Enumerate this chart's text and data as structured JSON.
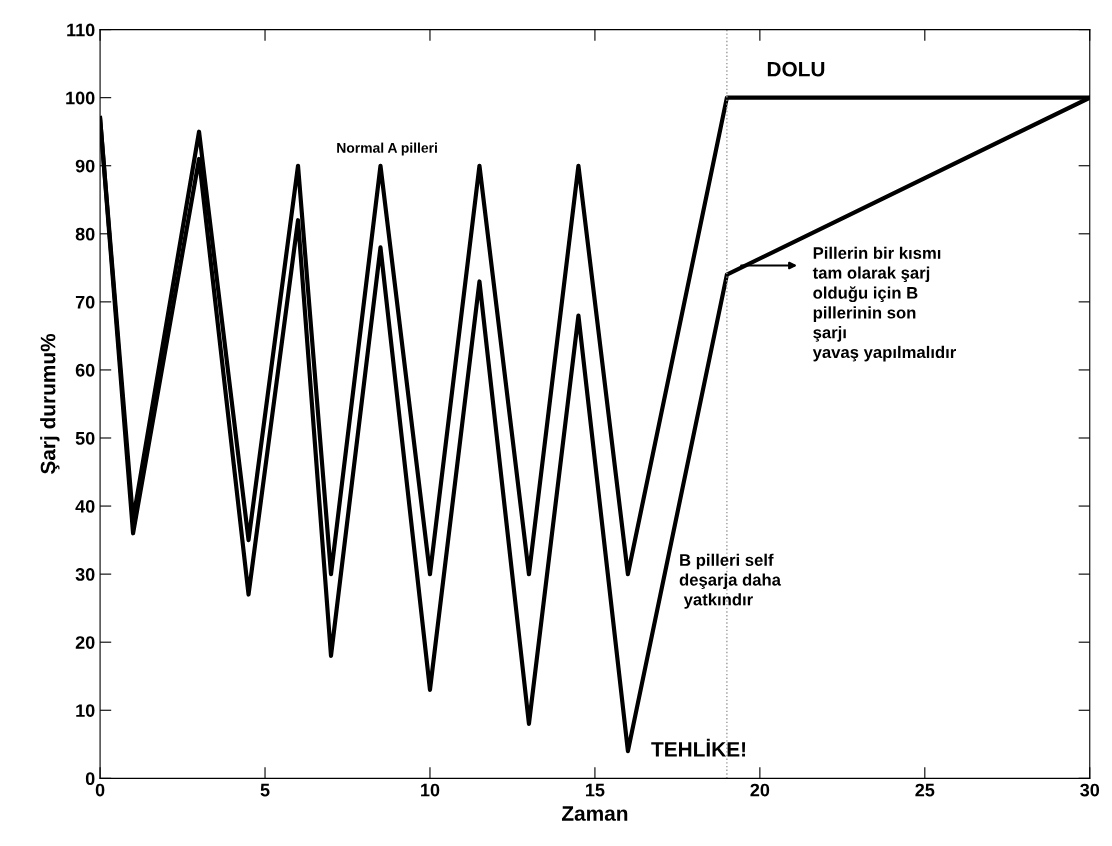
{
  "chart_data": {
    "type": "line",
    "xlabel": "Zaman",
    "ylabel": "Şarj durumu%",
    "series": [
      {
        "color": "#000000",
        "x": [
          0,
          1,
          3,
          4.5,
          6,
          7,
          8.5,
          10,
          11.5,
          13,
          14.5,
          16,
          19,
          30
        ],
        "values": [
          97,
          38,
          95,
          35,
          90,
          30,
          90,
          30,
          90,
          30,
          90,
          30,
          100,
          100
        ]
      },
      {
        "color": "#000000",
        "x": [
          0,
          1,
          3,
          4.5,
          6,
          7,
          8.5,
          10,
          11.5,
          13,
          14.5,
          16,
          19,
          30
        ],
        "values": [
          97,
          36,
          91,
          27,
          82,
          18,
          78,
          13,
          73,
          8,
          68,
          4,
          74,
          100
        ]
      }
    ],
    "xlim": [
      0,
      30
    ],
    "ylim": [
      0,
      110
    ],
    "xticks": [
      0,
      5,
      10,
      15,
      20,
      25,
      30
    ],
    "yticks": [
      0,
      10,
      20,
      30,
      40,
      50,
      60,
      70,
      80,
      90,
      100,
      110
    ],
    "grid": false,
    "legend": false,
    "marker": "none",
    "line_style": "solid",
    "ref_lines": [
      {
        "axis": "x",
        "value": 19,
        "color": "#999999",
        "line_style": "dotted"
      }
    ],
    "annotations": [
      {
        "text": "Normal A pilleri",
        "x": 8.5,
        "y": 90
      },
      {
        "text": "DOLU",
        "x": 19,
        "y": 100
      },
      "Pillerin bir kısmı\ntam olarak şarj\nolduğu için B\npillerinin son\nşarjı\nyavaş yapılmalıdır",
      "B pilleri self\ndeşarja daha\n yatkındır",
      {
        "text": "TEHLİKE!",
        "x": 16,
        "y": 4
      }
    ]
  }
}
